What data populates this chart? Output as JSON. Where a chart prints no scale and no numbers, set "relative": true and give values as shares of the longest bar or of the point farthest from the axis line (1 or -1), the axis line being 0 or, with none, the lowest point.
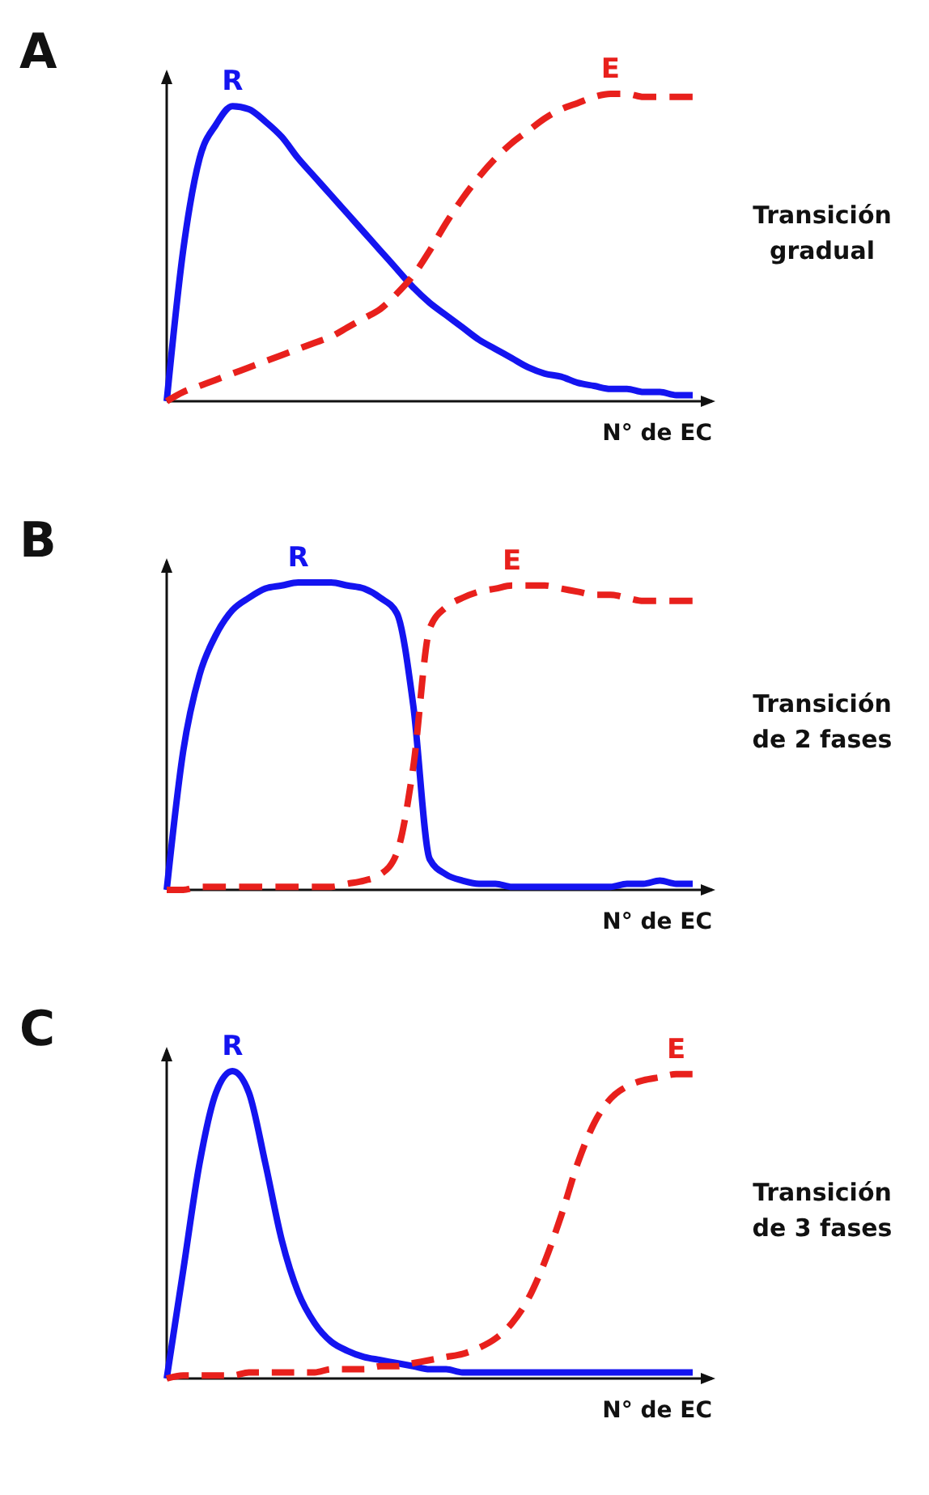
{
  "chart_data": [
    {
      "type": "line",
      "title": "A",
      "xlabel": "N° de EC",
      "relative": true,
      "annotations": [
        "Transición gradual"
      ],
      "categories": [
        null,
        null,
        null,
        null,
        null,
        null,
        null,
        null,
        null,
        null,
        null,
        null,
        null,
        null,
        null,
        null,
        null,
        null,
        null,
        null,
        null,
        null,
        null,
        null,
        null,
        null,
        null,
        null,
        null,
        null,
        null,
        null,
        null
      ],
      "series": [
        {
          "name": "R",
          "color": "#1414f0",
          "line_style": "solid",
          "values": [
            0,
            0.49,
            0.79,
            0.9,
            0.96,
            0.95,
            0.91,
            0.86,
            0.79,
            0.73,
            0.67,
            0.61,
            0.55,
            0.49,
            0.43,
            0.37,
            0.32,
            0.28,
            0.24,
            0.2,
            0.17,
            0.14,
            0.11,
            0.09,
            0.08,
            0.06,
            0.05,
            0.04,
            0.04,
            0.03,
            0.03,
            0.02,
            0.02
          ]
        },
        {
          "name": "E",
          "color": "#e8201c",
          "line_style": "dashed",
          "values": [
            0,
            0.03,
            0.05,
            0.07,
            0.09,
            0.11,
            0.13,
            0.15,
            0.17,
            0.19,
            0.21,
            0.24,
            0.27,
            0.3,
            0.35,
            0.41,
            0.49,
            0.58,
            0.66,
            0.73,
            0.79,
            0.84,
            0.88,
            0.92,
            0.95,
            0.97,
            0.99,
            1,
            1,
            0.99,
            0.99,
            0.99,
            0.99
          ]
        }
      ]
    },
    {
      "type": "line",
      "title": "B",
      "xlabel": "N° de EC",
      "relative": true,
      "annotations": [
        "Transición de 2 fases"
      ],
      "categories": [
        null,
        null,
        null,
        null,
        null,
        null,
        null,
        null,
        null,
        null,
        null,
        null,
        null,
        null,
        null,
        null,
        null,
        null,
        null,
        null,
        null,
        null,
        null,
        null,
        null,
        null,
        null,
        null,
        null,
        null,
        null,
        null,
        null
      ],
      "series": [
        {
          "name": "R",
          "color": "#1414f0",
          "line_style": "solid",
          "values": [
            0,
            0.45,
            0.7,
            0.83,
            0.91,
            0.95,
            0.98,
            0.99,
            1,
            1,
            1,
            0.99,
            0.98,
            0.95,
            0.9,
            0.6,
            0.1,
            0.05,
            0.03,
            0.02,
            0.02,
            0.01,
            0.01,
            0.01,
            0.01,
            0.01,
            0.01,
            0.01,
            0.02,
            0.02,
            0.03,
            0.02,
            0.02
          ]
        },
        {
          "name": "E",
          "color": "#e8201c",
          "line_style": "dashed",
          "values": [
            0,
            0,
            0.01,
            0.01,
            0.01,
            0.01,
            0.01,
            0.01,
            0.01,
            0.01,
            0.01,
            0.02,
            0.03,
            0.05,
            0.12,
            0.4,
            0.85,
            0.92,
            0.95,
            0.97,
            0.98,
            0.99,
            0.99,
            0.99,
            0.98,
            0.97,
            0.96,
            0.96,
            0.95,
            0.94,
            0.94,
            0.94,
            0.94
          ]
        }
      ]
    },
    {
      "type": "line",
      "title": "C",
      "xlabel": "N° de EC",
      "relative": true,
      "annotations": [
        "Transición de 3 fases"
      ],
      "categories": [
        null,
        null,
        null,
        null,
        null,
        null,
        null,
        null,
        null,
        null,
        null,
        null,
        null,
        null,
        null,
        null,
        null,
        null,
        null,
        null,
        null,
        null,
        null,
        null,
        null,
        null,
        null,
        null,
        null,
        null,
        null,
        null,
        null
      ],
      "series": [
        {
          "name": "R",
          "color": "#1414f0",
          "line_style": "solid",
          "values": [
            0,
            0.35,
            0.7,
            0.93,
            1,
            0.93,
            0.7,
            0.45,
            0.28,
            0.18,
            0.12,
            0.09,
            0.07,
            0.06,
            0.05,
            0.04,
            0.03,
            0.03,
            0.02,
            0.02,
            0.02,
            0.02,
            0.02,
            0.02,
            0.02,
            0.02,
            0.02,
            0.02,
            0.02,
            0.02,
            0.02,
            0.02,
            0.02
          ]
        },
        {
          "name": "E",
          "color": "#e8201c",
          "line_style": "dashed",
          "values": [
            0,
            0.01,
            0.01,
            0.01,
            0.01,
            0.02,
            0.02,
            0.02,
            0.02,
            0.02,
            0.03,
            0.03,
            0.03,
            0.04,
            0.04,
            0.05,
            0.06,
            0.07,
            0.08,
            0.1,
            0.13,
            0.18,
            0.26,
            0.38,
            0.53,
            0.7,
            0.83,
            0.91,
            0.95,
            0.97,
            0.98,
            0.99,
            0.99
          ]
        }
      ]
    }
  ]
}
